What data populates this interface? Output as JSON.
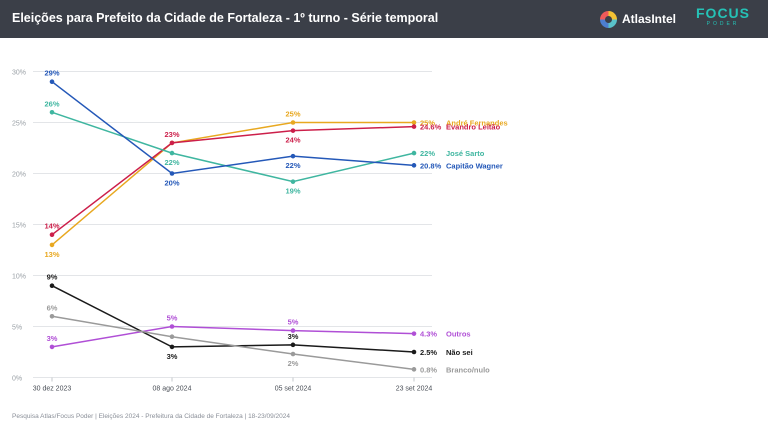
{
  "header": {
    "title": "Eleições para Prefeito da Cidade de Fortaleza - 1º turno - Série temporal",
    "logo_atlas": "AtlasIntel",
    "logo_focus": "FOCUS",
    "logo_focus_sub": "PODER"
  },
  "footer": "Pesquisa Atlas/Focus Poder  |  Eleições 2024 - Prefeitura da Cidade de Fortaleza  |  18-23/09/2024",
  "chart_data": {
    "type": "line",
    "categories": [
      "30 dez 2023",
      "08 ago 2024",
      "05 set 2024",
      "23 set 2024"
    ],
    "ylim": [
      0,
      30
    ],
    "yticks": [
      0,
      5,
      10,
      15,
      20,
      25,
      30
    ],
    "ytick_labels": [
      "0%",
      "5%",
      "10%",
      "15%",
      "20%",
      "25%",
      "30%"
    ],
    "grid": true,
    "series": [
      {
        "name": "André Fernandes",
        "color": "#e8a820",
        "values": [
          13,
          23,
          25,
          25
        ],
        "labels": [
          "13%",
          "",
          "25%",
          "25%"
        ],
        "label_pos": [
          "below",
          "below",
          "above",
          "end"
        ]
      },
      {
        "name": "Evandro Leitão",
        "color": "#cc1f4a",
        "values": [
          14,
          23,
          24.2,
          24.6
        ],
        "labels": [
          "14%",
          "23%",
          "24%",
          "24.6%"
        ],
        "label_pos": [
          "above",
          "above",
          "below",
          "end"
        ]
      },
      {
        "name": "José Sarto",
        "color": "#3fb6a0",
        "values": [
          26,
          22,
          19.2,
          22
        ],
        "labels": [
          "26%",
          "22%",
          "19%",
          "22%"
        ],
        "label_pos": [
          "above",
          "below",
          "below",
          "end"
        ]
      },
      {
        "name": "Capitão Wagner",
        "color": "#2458b8",
        "values": [
          29,
          20,
          21.7,
          20.8
        ],
        "labels": [
          "29%",
          "20%",
          "22%",
          "20.8%"
        ],
        "label_pos": [
          "above",
          "below",
          "below",
          "end"
        ]
      },
      {
        "name": "Outros",
        "color": "#b04fd6",
        "values": [
          3,
          5,
          4.6,
          4.3
        ],
        "labels": [
          "3%",
          "5%",
          "5%",
          "4.3%"
        ],
        "label_pos": [
          "above",
          "above",
          "above",
          "end"
        ]
      },
      {
        "name": "Não sei",
        "color": "#1a1a1a",
        "values": [
          9,
          3,
          3.2,
          2.5
        ],
        "labels": [
          "9%",
          "3%",
          "3%",
          "2.5%"
        ],
        "label_pos": [
          "above",
          "below",
          "above",
          "end"
        ]
      },
      {
        "name": "Branco/nulo",
        "color": "#9a9a9a",
        "values": [
          6,
          4,
          2.3,
          0.8
        ],
        "labels": [
          "6%",
          "",
          "2%",
          "0.8%"
        ],
        "label_pos": [
          "above",
          "above",
          "below",
          "end"
        ]
      }
    ]
  }
}
